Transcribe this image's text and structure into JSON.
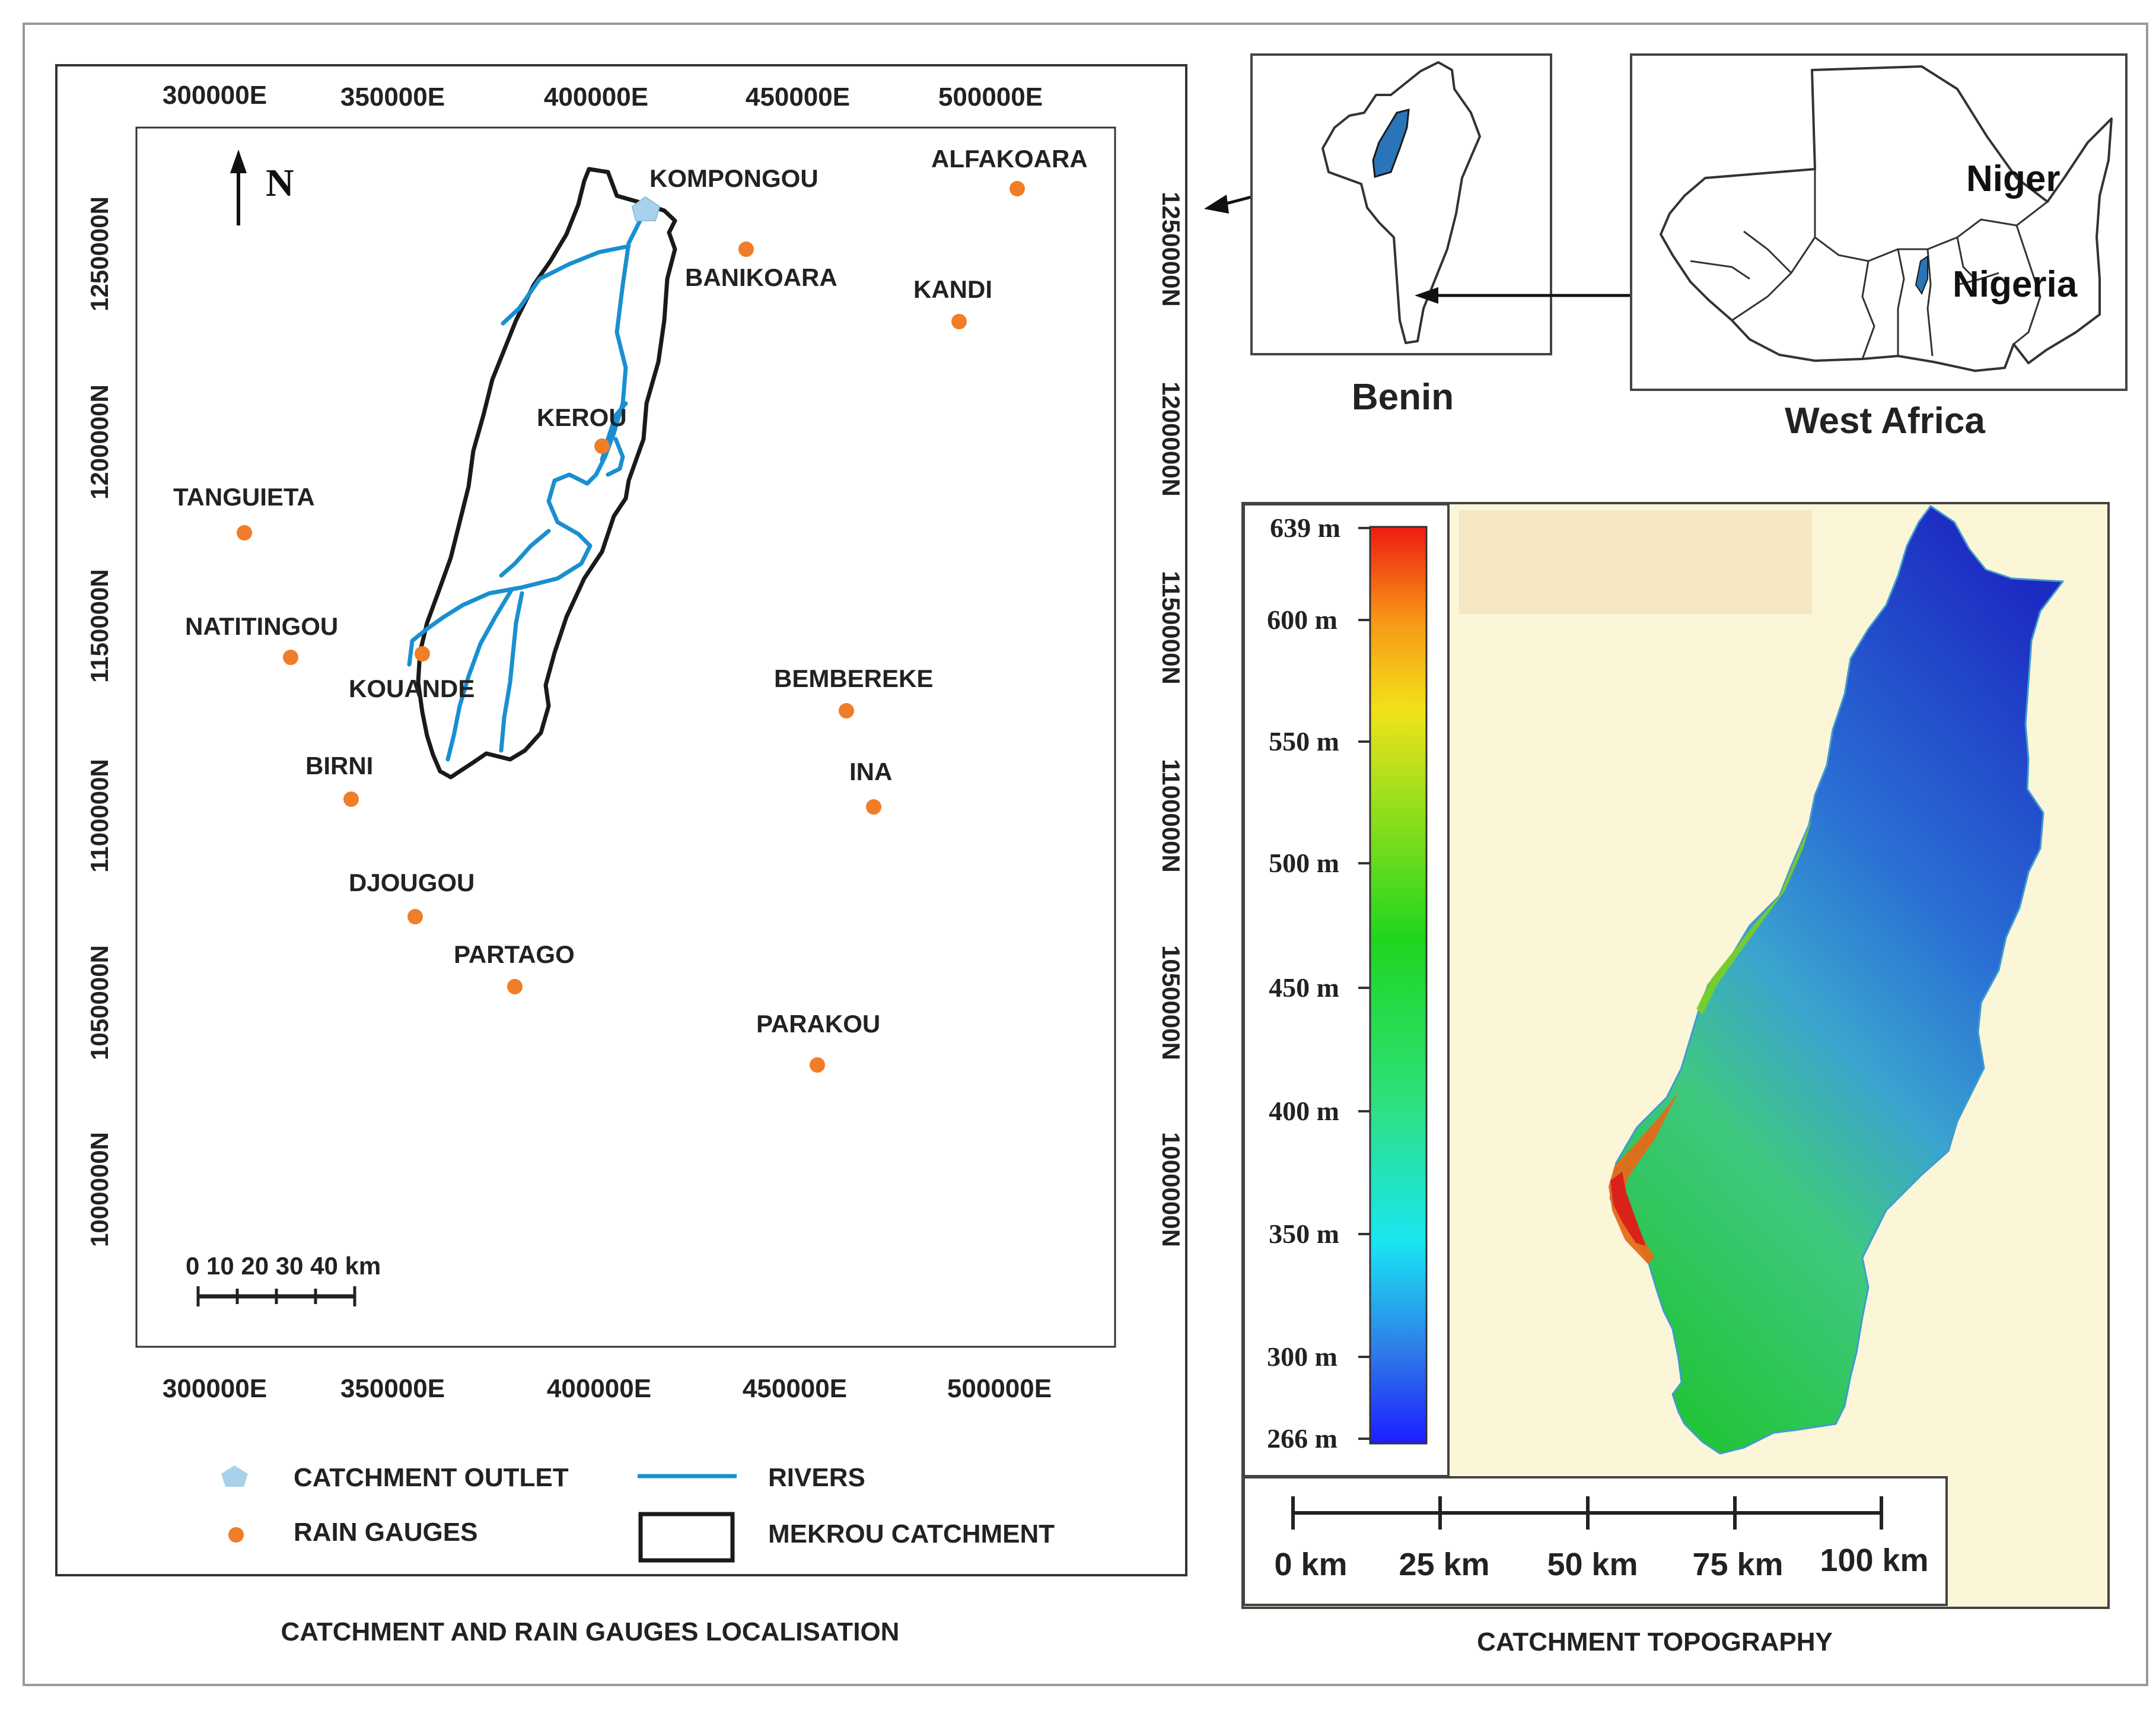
{
  "colors": {
    "gauge": "#f07d28",
    "river": "#1a8fd0",
    "outlet": "#a8d2ea",
    "catchment_outline": "#1a1a1a",
    "frame": "#333333",
    "topo_background": "#fbf6d8",
    "benin_catchment": "#2a74b8"
  },
  "location_map": {
    "caption": "CATCHMENT AND RAIN GAUGES LOCALISATION",
    "north_label": "N",
    "easting_labels_top": [
      "300000E",
      "350000E",
      "400000E",
      "450000E",
      "500000E"
    ],
    "easting_labels_bottom": [
      "300000E",
      "350000E",
      "400000E",
      "450000E",
      "500000E"
    ],
    "northing_labels_left": [
      "1250000N",
      "1200000N",
      "1150000N",
      "1100000N",
      "1050000N",
      "1000000N"
    ],
    "northing_labels_right": [
      "1250000N",
      "1200000N",
      "1150000N",
      "1100000N",
      "1050000N",
      "1000000N"
    ],
    "scale_bar": {
      "label": "0 10 20 30 40 km",
      "ticks_km": [
        0,
        10,
        20,
        30,
        40
      ]
    },
    "gauges": [
      "ALFAKOARA",
      "KANDI",
      "BANIKOARA",
      "KEROU",
      "TANGUIETA",
      "NATITINGOU",
      "KOUANDE",
      "BIRNI",
      "DJOUGOU",
      "PARTAGO",
      "BEMBEREKE",
      "INA",
      "PARAKOU"
    ],
    "outlet_label": "KOMPONGOU",
    "legend": [
      {
        "symbol": "outlet",
        "label": "CATCHMENT OUTLET"
      },
      {
        "symbol": "river",
        "label": "RIVERS"
      },
      {
        "symbol": "gauge",
        "label": "RAIN GAUGES"
      },
      {
        "symbol": "catchment",
        "label": "MEKROU CATCHMENT"
      }
    ]
  },
  "inset_benin": {
    "label": "Benin"
  },
  "inset_west_africa": {
    "label": "West Africa",
    "countries": [
      "Niger",
      "Nigeria"
    ]
  },
  "topography": {
    "caption": "CATCHMENT TOPOGRAPHY",
    "elevation_labels": [
      "639 m",
      "600 m",
      "550 m",
      "500 m",
      "450 m",
      "400 m",
      "350 m",
      "300 m",
      "266 m"
    ],
    "elevation_max_m": 639,
    "elevation_min_m": 266,
    "scale_labels": [
      "0 km",
      "25 km",
      "50 km",
      "75 km",
      "100 km"
    ]
  }
}
